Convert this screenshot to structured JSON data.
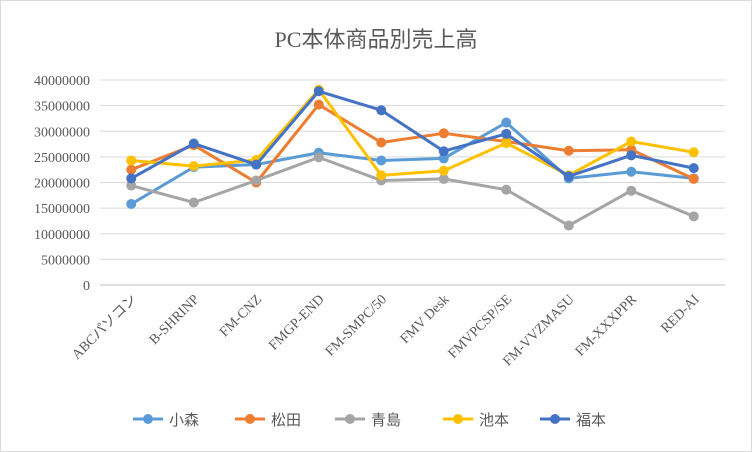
{
  "chart_data": {
    "type": "line",
    "title": "PC本体商品別売上高",
    "xlabel": "",
    "ylabel": "",
    "categories": [
      "ABCパソコン",
      "B-SHRINP",
      "FM-CNZ",
      "FMGP-END",
      "FM-SMPC/50",
      "FMV Desk",
      "FMVPCSP/SE",
      "FM-VVZMASU",
      "FM-XXXPPR",
      "RED-AI"
    ],
    "ylim": [
      0,
      40000000
    ],
    "yticks": [
      0,
      5000000,
      10000000,
      15000000,
      20000000,
      25000000,
      30000000,
      35000000,
      40000000
    ],
    "grid": true,
    "legend": "bottom",
    "series": [
      {
        "name": "小森",
        "color": "#5B9BD5",
        "values": [
          15800000,
          23000000,
          23500000,
          25800000,
          24300000,
          24700000,
          31700000,
          20800000,
          22100000,
          20800000
        ]
      },
      {
        "name": "松田",
        "color": "#ED7D31",
        "values": [
          22500000,
          27300000,
          20000000,
          35200000,
          27800000,
          29600000,
          28000000,
          26200000,
          26400000,
          20700000
        ]
      },
      {
        "name": "青島",
        "color": "#A5A5A5",
        "values": [
          19400000,
          16100000,
          20400000,
          24900000,
          20400000,
          20700000,
          18600000,
          11600000,
          18400000,
          13400000
        ]
      },
      {
        "name": "池本",
        "color": "#FFC000",
        "values": [
          24300000,
          23200000,
          24400000,
          38100000,
          21400000,
          22300000,
          27700000,
          21400000,
          28000000,
          25900000
        ]
      },
      {
        "name": "福本",
        "color": "#4472C4",
        "values": [
          20800000,
          27600000,
          23500000,
          37800000,
          34100000,
          26100000,
          29500000,
          21200000,
          25300000,
          22800000
        ]
      }
    ]
  }
}
